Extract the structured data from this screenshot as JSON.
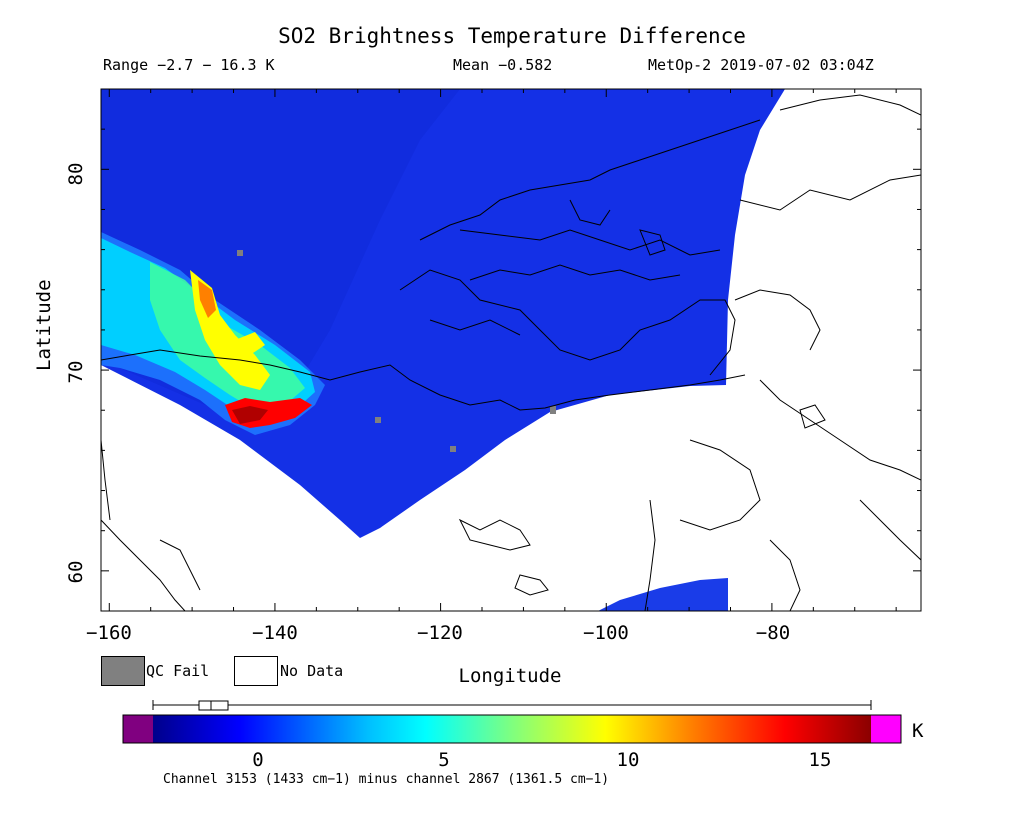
{
  "header": {
    "title": "SO2 Brightness Temperature Difference",
    "range": "Range −2.7 − 16.3 K",
    "mean": "Mean −0.582",
    "satellite": "MetOp-2 2019-07-02 03:04Z"
  },
  "axes": {
    "xlabel": "Longitude",
    "ylabel": "Latitude",
    "xticks": [
      "−160",
      "−140",
      "−120",
      "−100",
      "−80"
    ],
    "yticks": [
      "80",
      "70",
      "60"
    ],
    "xrange": [
      -161,
      -62
    ],
    "yrange": [
      58,
      84
    ]
  },
  "legend": {
    "qc_fail": "QC Fail",
    "no_data": "No Data",
    "qc_fail_color": "#808080",
    "no_data_color": "#ffffff"
  },
  "colorbar": {
    "ticks": [
      "0",
      "5",
      "10",
      "15"
    ],
    "unit": "K",
    "range": [
      -3.5,
      17
    ],
    "low_color": "#800080",
    "high_color": "#ff00ff",
    "stops": [
      "#00008b",
      "#0000ff",
      "#00bfff",
      "#00ffff",
      "#7fff7f",
      "#ffff00",
      "#ff8000",
      "#ff0000",
      "#8b0000"
    ]
  },
  "footnote": "Channel 3153 (1433 cm−1) minus channel 2867 (1361.5 cm−1)",
  "map": {
    "background_color": "#1430e6",
    "plume_colors": [
      "#00ffff",
      "#3fff9f",
      "#ffff00",
      "#ff8000",
      "#ff0000",
      "#b00000"
    ]
  }
}
